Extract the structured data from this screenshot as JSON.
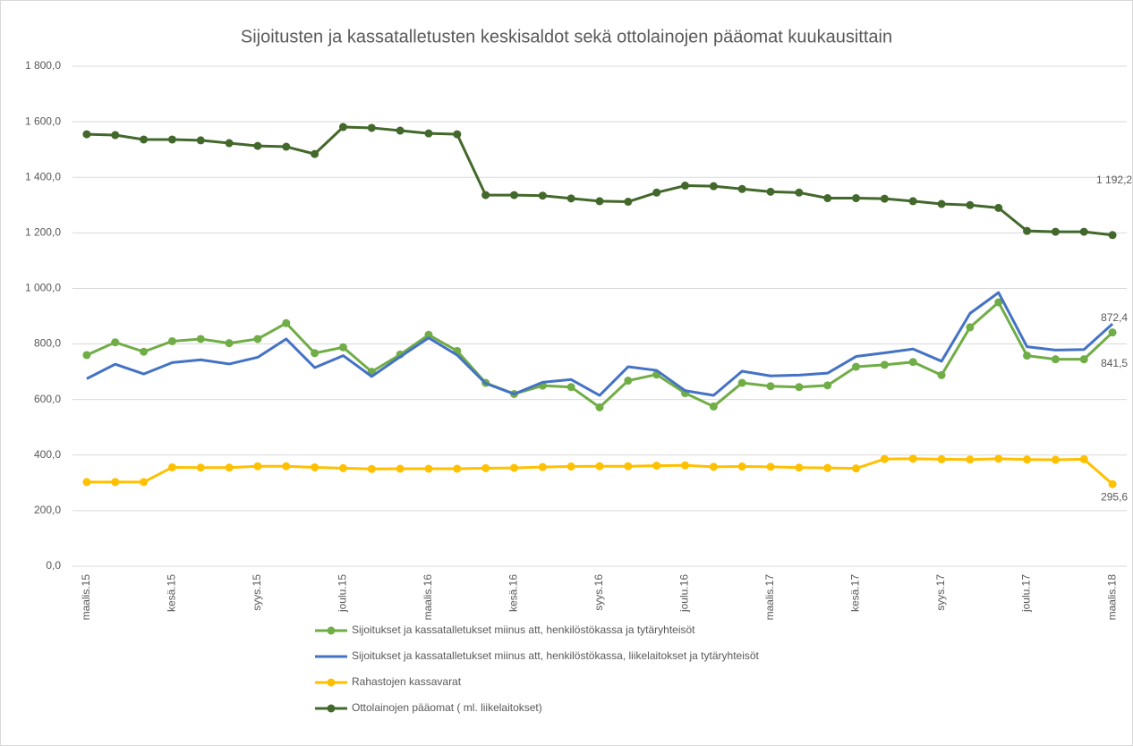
{
  "chart_data": {
    "type": "line",
    "title": "Sijoitusten ja kassatalletusten keskisaldot sekä ottolainojen pääomat kuukausittain",
    "categories": [
      "maalis.15",
      null,
      null,
      "kesä.15",
      null,
      null,
      "syys.15",
      null,
      null,
      "joulu.15",
      null,
      null,
      "maalis.16",
      null,
      null,
      "kesä.16",
      null,
      null,
      "syys.16",
      null,
      null,
      "joulu.16",
      null,
      null,
      "maalis.17",
      null,
      null,
      "kesä.17",
      null,
      null,
      "syys.17",
      null,
      null,
      "joulu.17",
      null,
      null,
      "maalis.18"
    ],
    "ylim": [
      0,
      1800
    ],
    "yticks": [
      {
        "value": 0,
        "label": "0,0"
      },
      {
        "value": 200,
        "label": "200,0"
      },
      {
        "value": 400,
        "label": "400,0"
      },
      {
        "value": 600,
        "label": "600,0"
      },
      {
        "value": 800,
        "label": "800,0"
      },
      {
        "value": 1000,
        "label": "1 000,0"
      },
      {
        "value": 1200,
        "label": "1 200,0"
      },
      {
        "value": 1400,
        "label": "1 400,0"
      },
      {
        "value": 1600,
        "label": "1 600,0"
      },
      {
        "value": 1800,
        "label": "1 800,0"
      }
    ],
    "grid": true,
    "legend": "bottom",
    "series": [
      {
        "name": "Sijoitukset ja kassatalletukset miinus att, henkilöstökassa ja tytäryhteisöt",
        "color": "#70ad47",
        "markers": true,
        "values": [
          760,
          806,
          772,
          810,
          818,
          803,
          818,
          875,
          767,
          788,
          700,
          762,
          833,
          775,
          660,
          620,
          650,
          645,
          572,
          668,
          690,
          623,
          575,
          660,
          648,
          645,
          651,
          718,
          725,
          735,
          688,
          860,
          950,
          758,
          745,
          745,
          841.5
        ],
        "value_labels": [
          null,
          null,
          null,
          null,
          null,
          null,
          null,
          null,
          null,
          null,
          null,
          null,
          null,
          null,
          null,
          null,
          null,
          null,
          null,
          null,
          null,
          null,
          null,
          null,
          null,
          null,
          null,
          null,
          null,
          null,
          null,
          null,
          null,
          null,
          null,
          null,
          "841,5"
        ]
      },
      {
        "name": "Sijoitukset ja kassatalletukset miinus att, henkilöstökassa, liikelaitokset ja tytäryhteisöt",
        "color": "#4472c4",
        "markers": false,
        "values": [
          675,
          727,
          692,
          733,
          743,
          728,
          752,
          818,
          715,
          758,
          683,
          754,
          822,
          760,
          658,
          620,
          662,
          672,
          615,
          718,
          705,
          632,
          615,
          702,
          685,
          688,
          695,
          755,
          768,
          782,
          738,
          910,
          985,
          790,
          778,
          780,
          872.4
        ],
        "value_labels": [
          null,
          null,
          null,
          null,
          null,
          null,
          null,
          null,
          null,
          null,
          null,
          null,
          null,
          null,
          null,
          null,
          null,
          null,
          null,
          null,
          null,
          null,
          null,
          null,
          null,
          null,
          null,
          null,
          null,
          null,
          null,
          null,
          null,
          null,
          null,
          null,
          "872,4"
        ]
      },
      {
        "name": "Rahastojen kassavarat",
        "color": "#ffc000",
        "markers": true,
        "values": [
          303,
          303,
          303,
          356,
          355,
          355,
          360,
          360,
          356,
          353,
          350,
          351,
          351,
          351,
          353,
          354,
          357,
          359,
          360,
          360,
          362,
          363,
          358,
          359,
          358,
          355,
          354,
          352,
          386,
          387,
          385,
          384,
          387,
          384,
          383,
          385,
          295.6
        ],
        "value_labels": [
          null,
          null,
          null,
          null,
          null,
          null,
          null,
          null,
          null,
          null,
          null,
          null,
          null,
          null,
          null,
          null,
          null,
          null,
          null,
          null,
          null,
          null,
          null,
          null,
          null,
          null,
          null,
          null,
          null,
          null,
          null,
          null,
          null,
          null,
          null,
          null,
          "295,6"
        ]
      },
      {
        "name": "Ottolainojen pääomat ( ml. liikelaitokset)",
        "color": "#43682b",
        "markers": true,
        "values": [
          1555,
          1552,
          1536,
          1536,
          1533,
          1523,
          1513,
          1510,
          1484,
          1581,
          1578,
          1568,
          1558,
          1555,
          1336,
          1336,
          1334,
          1324,
          1314,
          1312,
          1345,
          1370,
          1368,
          1358,
          1348,
          1345,
          1325,
          1325,
          1323,
          1314,
          1304,
          1300,
          1290,
          1207,
          1204,
          1204,
          1192.2
        ],
        "value_labels": [
          null,
          null,
          null,
          null,
          null,
          null,
          null,
          null,
          null,
          null,
          null,
          null,
          null,
          null,
          null,
          null,
          null,
          null,
          null,
          null,
          null,
          null,
          null,
          null,
          null,
          null,
          null,
          null,
          null,
          null,
          null,
          null,
          null,
          null,
          null,
          null,
          "1 192,2"
        ]
      }
    ]
  }
}
